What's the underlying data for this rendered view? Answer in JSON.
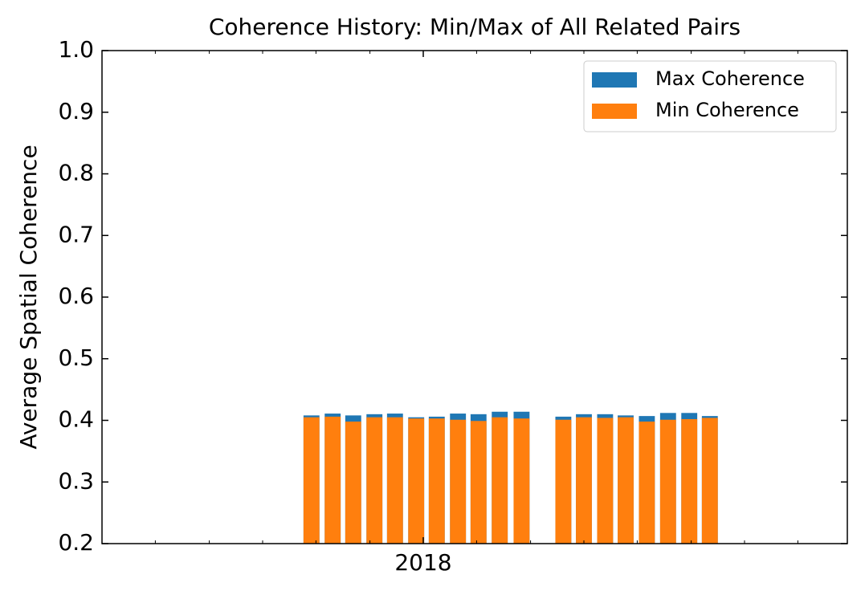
{
  "chart_data": {
    "type": "bar",
    "title": "Coherence History: Min/Max of All Related Pairs",
    "y_label": "Average Spatial Coherence",
    "x": [
      2017.826,
      2017.859,
      2017.891,
      2017.924,
      2017.956,
      2017.989,
      2018.021,
      2018.054,
      2018.086,
      2018.119,
      2018.153,
      2018.218,
      2018.25,
      2018.283,
      2018.315,
      2018.348,
      2018.381,
      2018.414,
      2018.446
    ],
    "series": [
      {
        "name": "Max Coherence",
        "color": "#1f77b4",
        "values": [
          0.408,
          0.411,
          0.408,
          0.41,
          0.411,
          0.405,
          0.406,
          0.411,
          0.41,
          0.414,
          0.414,
          0.406,
          0.41,
          0.41,
          0.408,
          0.407,
          0.412,
          0.412,
          0.407
        ]
      },
      {
        "name": "Min Coherence",
        "color": "#ff7f0e",
        "values": [
          0.405,
          0.406,
          0.398,
          0.405,
          0.405,
          0.403,
          0.403,
          0.401,
          0.399,
          0.405,
          0.403,
          0.401,
          0.405,
          0.404,
          0.405,
          0.398,
          0.401,
          0.402,
          0.404
        ]
      }
    ],
    "xlim": [
      2017.5,
      2018.66
    ],
    "xticks": [
      {
        "value": 2018,
        "label": "2018"
      }
    ],
    "xminorticks": [
      2017.583,
      2017.667,
      2017.75,
      2017.833,
      2017.917,
      2018.083,
      2018.167,
      2018.25,
      2018.333,
      2018.417,
      2018.5,
      2018.583
    ],
    "ylim": [
      0.2,
      1.0
    ],
    "yticks": [
      0.2,
      0.3,
      0.4,
      0.5,
      0.6,
      0.7,
      0.8,
      0.9,
      {
        "value": 1.0,
        "label": "1.0"
      }
    ],
    "legend": "upper right",
    "grid": false
  }
}
